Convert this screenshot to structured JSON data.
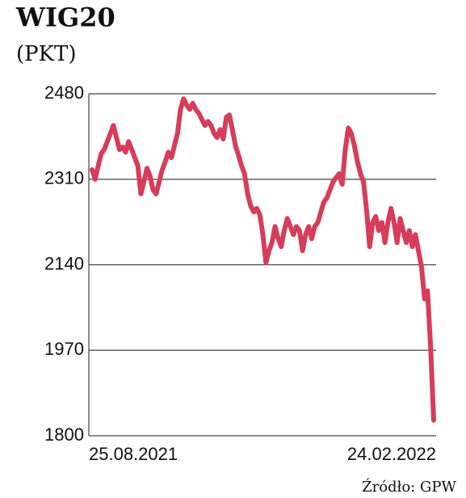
{
  "chart_data": {
    "type": "line",
    "title": "WIG20",
    "subtitle": "(PKT)",
    "source": "Źródło: GPW",
    "categories": [
      "25.08.2021",
      null,
      null,
      null,
      null,
      null,
      null,
      null,
      null,
      null,
      null,
      null,
      null,
      null,
      null,
      null,
      null,
      null,
      null,
      null,
      null,
      null,
      null,
      null,
      null,
      null,
      null,
      null,
      null,
      null,
      null,
      null,
      null,
      null,
      null,
      null,
      null,
      null,
      null,
      null,
      null,
      null,
      null,
      null,
      null,
      null,
      null,
      null,
      null,
      null,
      null,
      null,
      null,
      null,
      null,
      null,
      null,
      null,
      null,
      null,
      null,
      null,
      null,
      null,
      null,
      null,
      null,
      null,
      null,
      null,
      null,
      null,
      null,
      null,
      null,
      null,
      null,
      null,
      null,
      null,
      null,
      null,
      null,
      null,
      null,
      null,
      null,
      null,
      null,
      null,
      null,
      null,
      null,
      null,
      null,
      null,
      null,
      null,
      null,
      null,
      null,
      null,
      null,
      null,
      null,
      null,
      null,
      null,
      null,
      null,
      null,
      null,
      "24.02.2022"
    ],
    "values": [
      2329,
      2310,
      2337,
      2361,
      2369,
      2385,
      2401,
      2417,
      2393,
      2369,
      2374,
      2364,
      2385,
      2369,
      2353,
      2337,
      2281,
      2305,
      2332,
      2316,
      2289,
      2281,
      2305,
      2329,
      2345,
      2364,
      2353,
      2377,
      2401,
      2449,
      2470,
      2458,
      2449,
      2461,
      2449,
      2441,
      2429,
      2417,
      2425,
      2417,
      2401,
      2393,
      2409,
      2390,
      2433,
      2438,
      2409,
      2377,
      2358,
      2337,
      2321,
      2281,
      2257,
      2245,
      2252,
      2240,
      2200,
      2144,
      2168,
      2184,
      2216,
      2192,
      2176,
      2208,
      2232,
      2216,
      2200,
      2216,
      2208,
      2168,
      2200,
      2216,
      2192,
      2216,
      2224,
      2245,
      2265,
      2273,
      2289,
      2305,
      2313,
      2321,
      2300,
      2369,
      2412,
      2401,
      2377,
      2345,
      2321,
      2305,
      2249,
      2176,
      2224,
      2236,
      2208,
      2224,
      2184,
      2224,
      2252,
      2224,
      2184,
      2232,
      2208,
      2184,
      2208,
      2176,
      2200,
      2168,
      2136,
      2072,
      2088,
      1975,
      1831
    ],
    "color": "#d63d5b",
    "ylim": [
      1800,
      2480
    ],
    "yticks": [
      1800,
      1970,
      2140,
      2310,
      2480
    ],
    "grid": true
  }
}
